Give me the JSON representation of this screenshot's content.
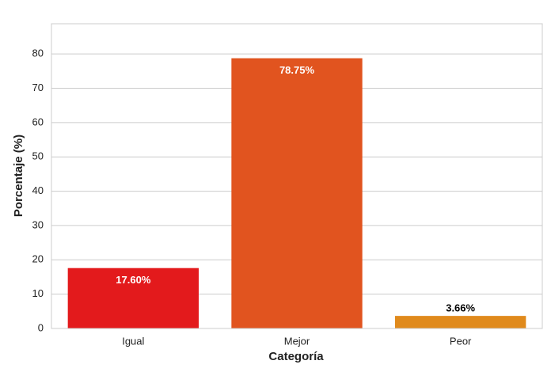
{
  "chart_data": {
    "type": "bar",
    "xlabel": "Categoría",
    "ylabel": "Porcentaje (%)",
    "categories": [
      "Igual",
      "Mejor",
      "Peor"
    ],
    "values": [
      17.6,
      78.75,
      3.66
    ],
    "value_labels": [
      "17.60%",
      "78.75%",
      "3.66%"
    ],
    "colors": [
      "#e31a1c",
      "#e1541f",
      "#e08a1c"
    ],
    "ylim": [
      0,
      88.8
    ],
    "yticks": [
      0,
      10,
      20,
      30,
      40,
      50,
      60,
      70,
      80
    ],
    "grid": true
  }
}
